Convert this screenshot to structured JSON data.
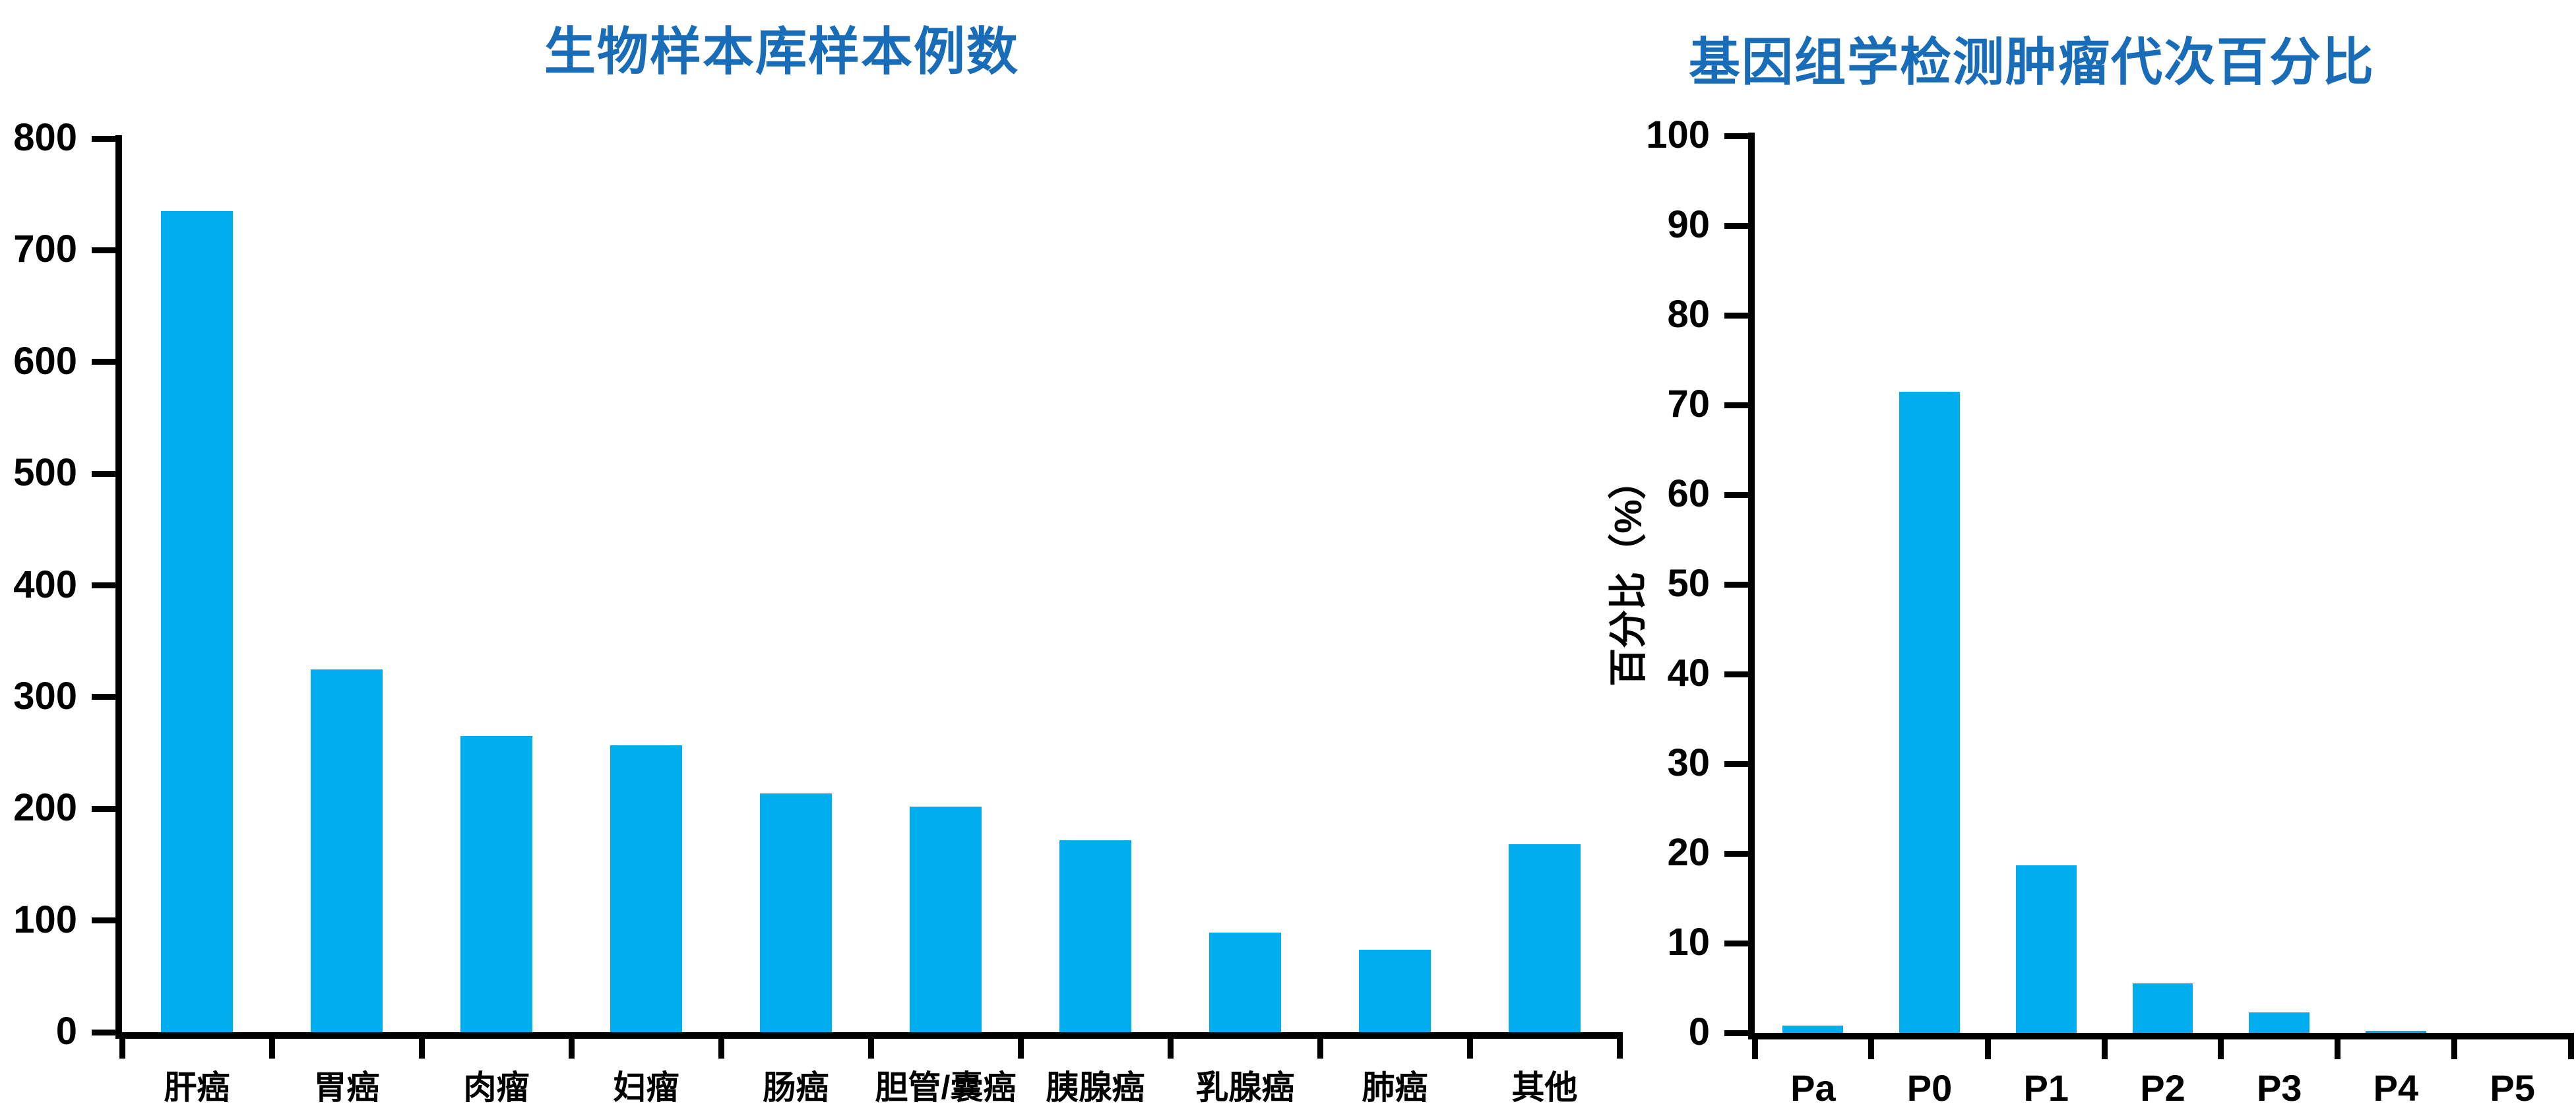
{
  "colors": {
    "bar": "#00AEEF",
    "title": "#186CB8",
    "axis": "#000000"
  },
  "chart_data": [
    {
      "type": "bar",
      "title": "生物样本库样本例数",
      "categories": [
        "肝癌",
        "胃癌",
        "肉瘤",
        "妇瘤",
        "肠癌",
        "胆管/囊癌",
        "胰腺癌",
        "乳腺癌",
        "肺癌",
        "其他"
      ],
      "values": [
        735,
        325,
        265,
        257,
        214,
        202,
        172,
        89,
        74,
        168
      ],
      "xlabel": "",
      "ylabel": "",
      "ylim": [
        0,
        800
      ],
      "ytick_step": 100,
      "yticks": [
        0,
        100,
        200,
        300,
        400,
        500,
        600,
        700,
        800
      ],
      "grid": "off",
      "legend": "none"
    },
    {
      "type": "bar",
      "title": "基因组学检测肿瘤代次百分比",
      "categories": [
        "Pa",
        "P0",
        "P1",
        "P2",
        "P3",
        "P4",
        "P5"
      ],
      "values": [
        0.8,
        71.5,
        18.7,
        5.5,
        2.3,
        0.2,
        0
      ],
      "xlabel": "",
      "ylabel": "百分比（%）",
      "ylim": [
        0,
        100
      ],
      "ytick_step": 10,
      "yticks": [
        0,
        10,
        20,
        30,
        40,
        50,
        60,
        70,
        80,
        90,
        100
      ],
      "grid": "off",
      "legend": "none"
    }
  ]
}
